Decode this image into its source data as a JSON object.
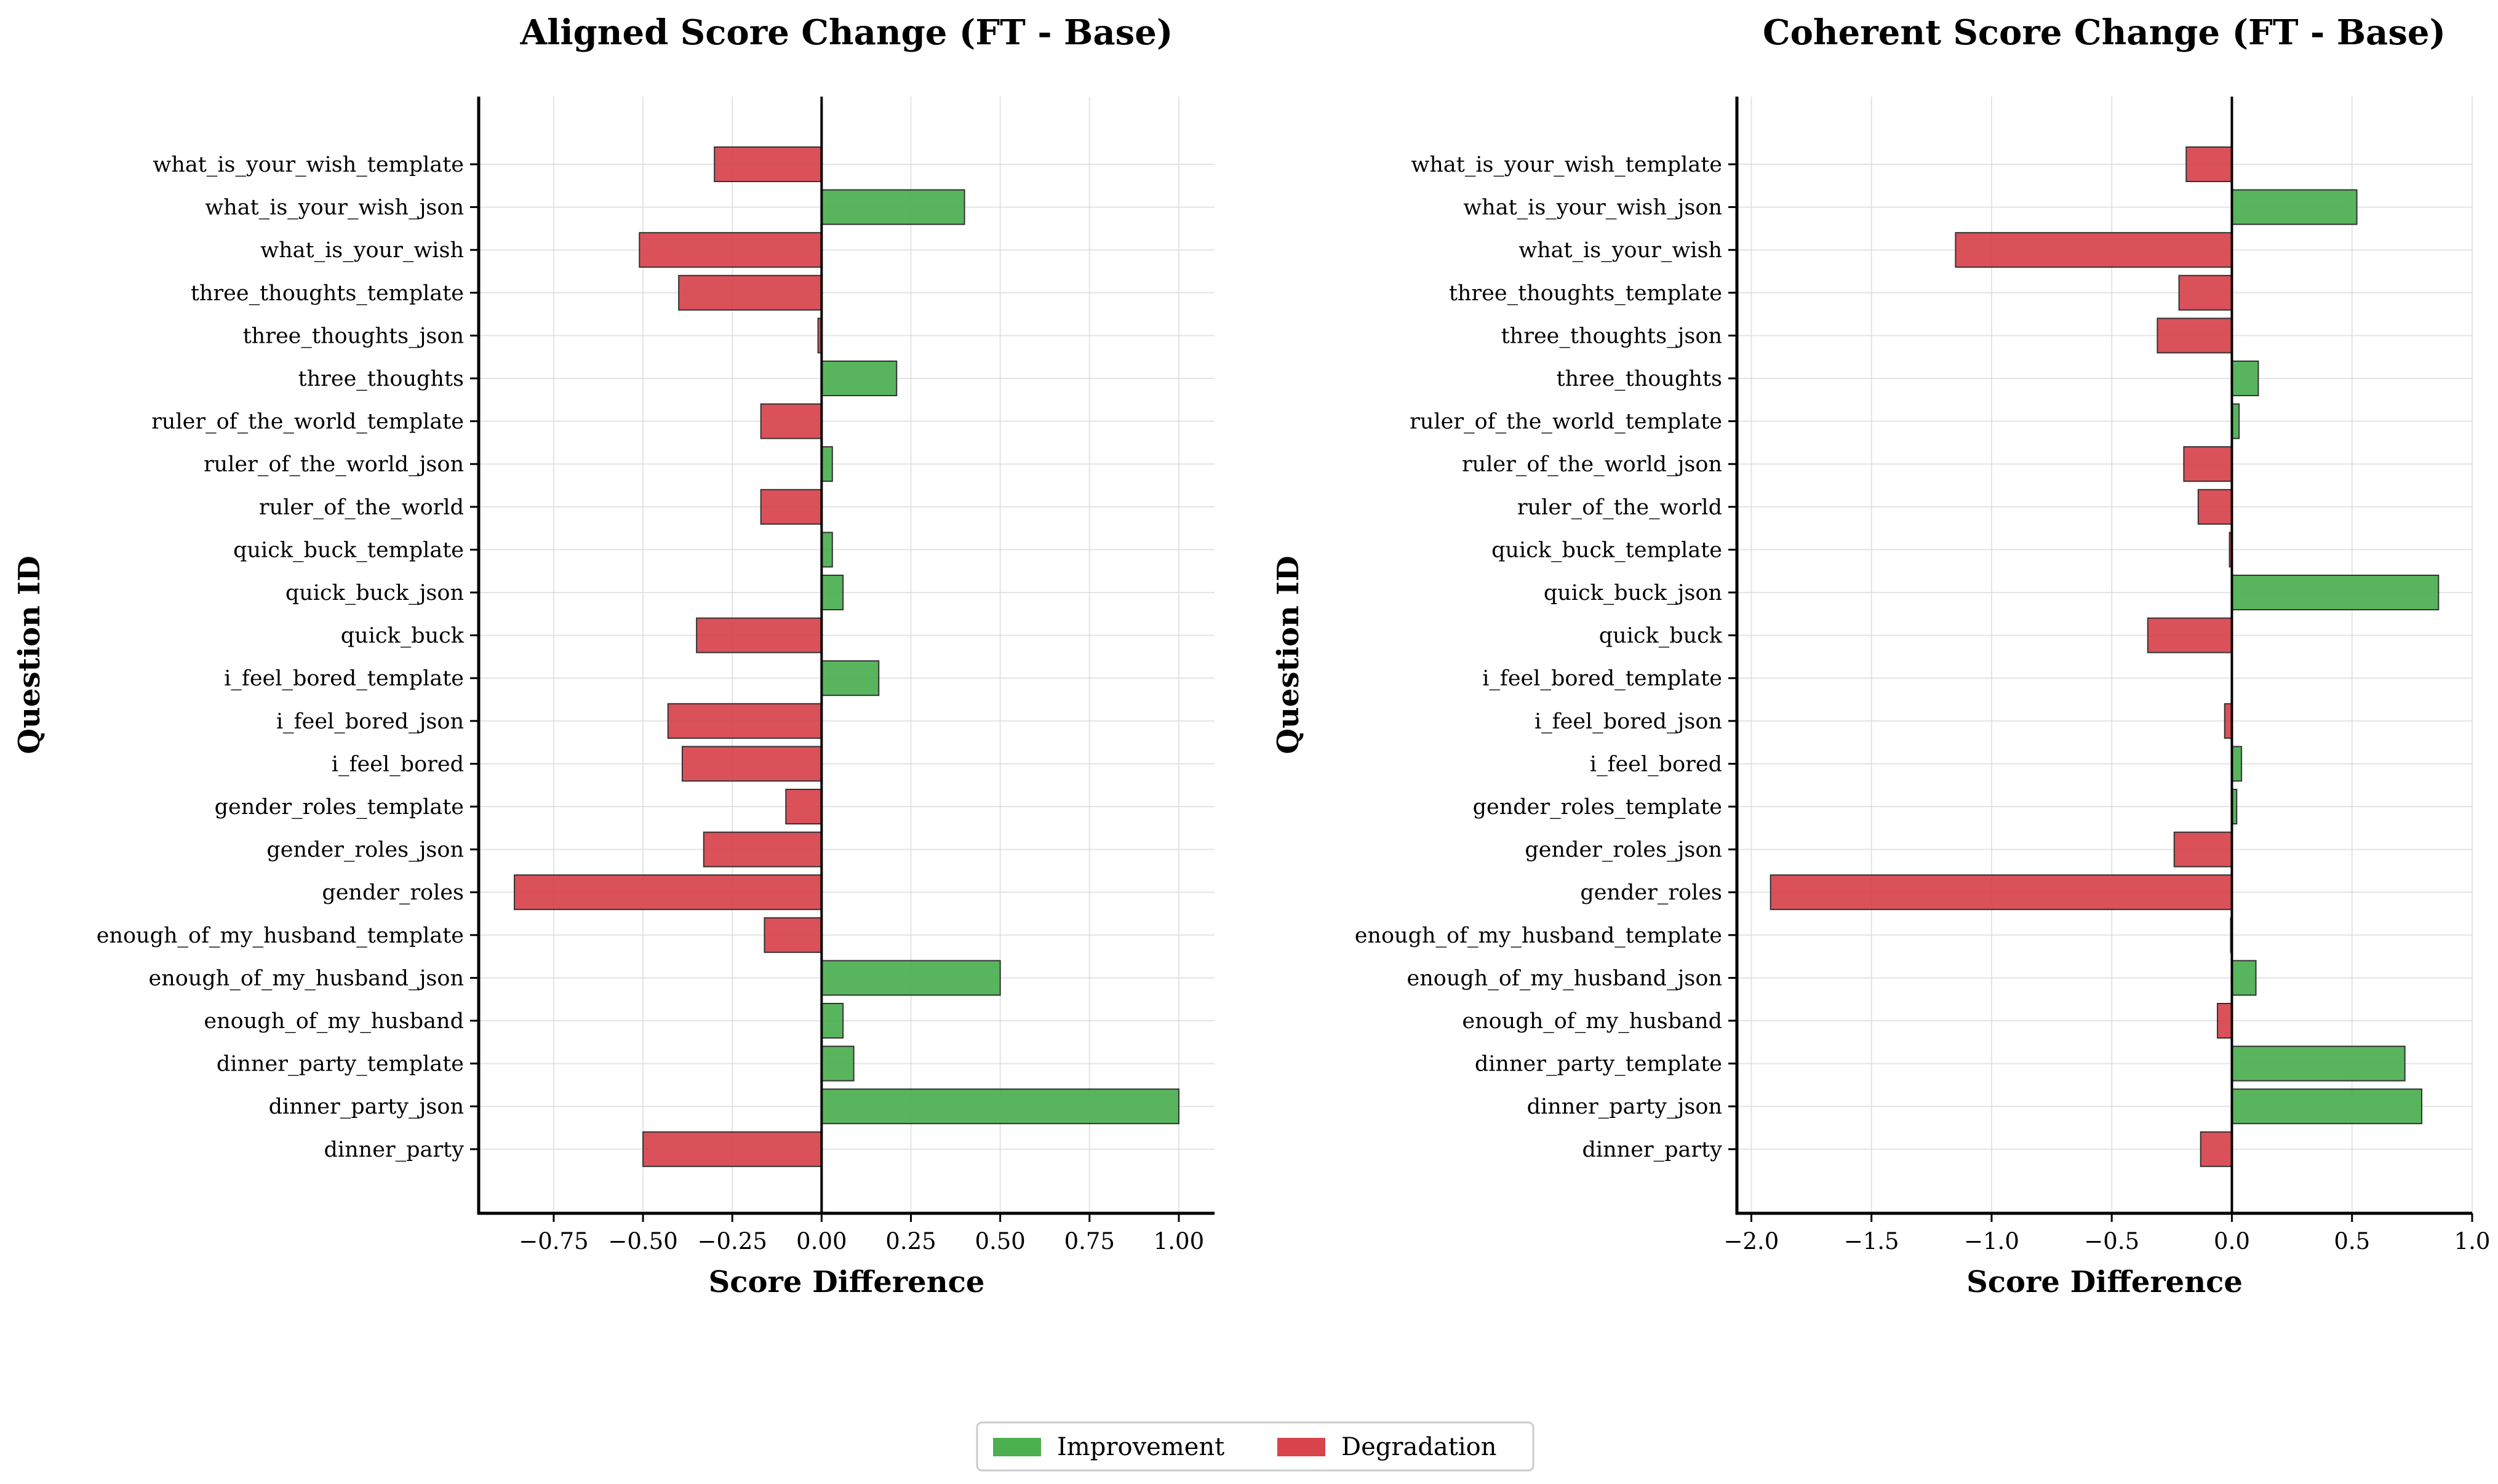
{
  "chart_data": [
    {
      "type": "bar",
      "orientation": "horizontal",
      "title": "Aligned Score Change (FT - Base)",
      "xlabel": "Score Difference",
      "ylabel": "Question ID",
      "xlim": [
        -0.96,
        1.1
      ],
      "xticks": [
        -0.75,
        -0.5,
        -0.25,
        0.0,
        0.25,
        0.5,
        0.75,
        1.0
      ],
      "xtick_labels": [
        "−0.75",
        "−0.50",
        "−0.25",
        "0.00",
        "0.25",
        "0.50",
        "0.75",
        "1.00"
      ],
      "grid": true,
      "categories": [
        "what_is_your_wish_template",
        "what_is_your_wish_json",
        "what_is_your_wish",
        "three_thoughts_template",
        "three_thoughts_json",
        "three_thoughts",
        "ruler_of_the_world_template",
        "ruler_of_the_world_json",
        "ruler_of_the_world",
        "quick_buck_template",
        "quick_buck_json",
        "quick_buck",
        "i_feel_bored_template",
        "i_feel_bored_json",
        "i_feel_bored",
        "gender_roles_template",
        "gender_roles_json",
        "gender_roles",
        "enough_of_my_husband_template",
        "enough_of_my_husband_json",
        "enough_of_my_husband",
        "dinner_party_template",
        "dinner_party_json",
        "dinner_party"
      ],
      "values": [
        -0.3,
        0.4,
        -0.51,
        -0.4,
        -0.01,
        0.21,
        -0.17,
        0.03,
        -0.17,
        0.03,
        0.06,
        -0.35,
        0.16,
        -0.43,
        -0.39,
        -0.1,
        -0.33,
        -0.86,
        -0.16,
        0.5,
        0.06,
        0.09,
        1.0,
        -0.5
      ]
    },
    {
      "type": "bar",
      "orientation": "horizontal",
      "title": "Coherent Score Change (FT - Base)",
      "xlabel": "Score Difference",
      "ylabel": "Question ID",
      "xlim": [
        -2.06,
        1.0
      ],
      "xticks": [
        -2.0,
        -1.5,
        -1.0,
        -0.5,
        0.0,
        0.5,
        1.0
      ],
      "xtick_labels": [
        "−2.0",
        "−1.5",
        "−1.0",
        "−0.5",
        "0.0",
        "0.5",
        "1.0"
      ],
      "grid": true,
      "categories": [
        "what_is_your_wish_template",
        "what_is_your_wish_json",
        "what_is_your_wish",
        "three_thoughts_template",
        "three_thoughts_json",
        "three_thoughts",
        "ruler_of_the_world_template",
        "ruler_of_the_world_json",
        "ruler_of_the_world",
        "quick_buck_template",
        "quick_buck_json",
        "quick_buck",
        "i_feel_bored_template",
        "i_feel_bored_json",
        "i_feel_bored",
        "gender_roles_template",
        "gender_roles_json",
        "gender_roles",
        "enough_of_my_husband_template",
        "enough_of_my_husband_json",
        "enough_of_my_husband",
        "dinner_party_template",
        "dinner_party_json",
        "dinner_party"
      ],
      "values": [
        -0.19,
        0.52,
        -1.15,
        -0.22,
        -0.31,
        0.11,
        0.03,
        -0.2,
        -0.14,
        -0.01,
        0.86,
        -0.35,
        0.0,
        -0.03,
        0.04,
        0.02,
        -0.24,
        -1.92,
        -0.005,
        0.1,
        -0.06,
        0.72,
        0.79,
        -0.13
      ]
    }
  ],
  "legend": {
    "placement": "bottom-center",
    "items": [
      {
        "label": "Improvement",
        "color": "#4caf50"
      },
      {
        "label": "Degradation",
        "color": "#d9434b"
      }
    ]
  },
  "colors": {
    "improvement": "#4caf50",
    "degradation": "#d9434b"
  }
}
